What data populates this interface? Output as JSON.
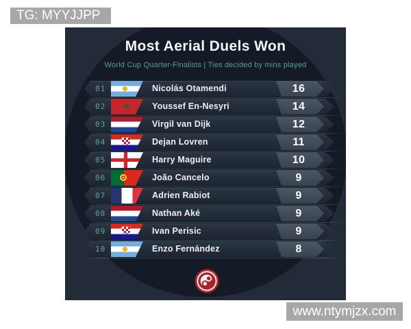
{
  "watermarks": {
    "tg": "TG: MYYJJPP",
    "site": "www.ntymjzx.com"
  },
  "card": {
    "title": "Most Aerial Duels Won",
    "subtitle": "World Cup Quarter-Finalists | Ties decided by mins played",
    "rows": [
      {
        "rank": "01",
        "country": "argentina",
        "player": "Nicolás Otamendi",
        "value": "16"
      },
      {
        "rank": "02",
        "country": "morocco",
        "player": "Youssef En-Nesyri",
        "value": "14"
      },
      {
        "rank": "03",
        "country": "netherlands",
        "player": "Virgil van Dijk",
        "value": "12"
      },
      {
        "rank": "04",
        "country": "croatia",
        "player": "Dejan Lovren",
        "value": "11"
      },
      {
        "rank": "05",
        "country": "england",
        "player": "Harry Maguire",
        "value": "10"
      },
      {
        "rank": "06",
        "country": "portugal",
        "player": "João Cancelo",
        "value": "9"
      },
      {
        "rank": "07",
        "country": "france",
        "player": "Adrien Rabiot",
        "value": "9"
      },
      {
        "rank": "08",
        "country": "netherlands",
        "player": "Nathan Aké",
        "value": "9"
      },
      {
        "rank": "09",
        "country": "croatia",
        "player": "Ivan Perisic",
        "value": "9"
      },
      {
        "rank": "10",
        "country": "argentina",
        "player": "Enzo Fernández",
        "value": "8"
      }
    ],
    "logo": "red-swirl-badge",
    "morocco_star": "★"
  },
  "chart_data": {
    "type": "table",
    "title": "Most Aerial Duels Won",
    "subtitle": "World Cup Quarter-Finalists | Ties decided by mins played",
    "columns": [
      "rank",
      "player",
      "aerial_duels_won"
    ],
    "rows": [
      [
        "01",
        "Nicolás Otamendi",
        16
      ],
      [
        "02",
        "Youssef En-Nesyri",
        14
      ],
      [
        "03",
        "Virgil van Dijk",
        12
      ],
      [
        "04",
        "Dejan Lovren",
        11
      ],
      [
        "05",
        "Harry Maguire",
        10
      ],
      [
        "06",
        "João Cancelo",
        9
      ],
      [
        "07",
        "Adrien Rabiot",
        9
      ],
      [
        "08",
        "Nathan Aké",
        9
      ],
      [
        "09",
        "Ivan Perisic",
        9
      ],
      [
        "10",
        "Enzo Fernández",
        8
      ]
    ]
  },
  "colors": {
    "accent_teal": "#55a08d",
    "card_outer": "#232b38",
    "card_circle": "#141b26",
    "row_dark": "#242d3a",
    "value_chip": "#434c5a",
    "logo_red": "#a8232b",
    "badge_gray": "#a7a7a7"
  }
}
